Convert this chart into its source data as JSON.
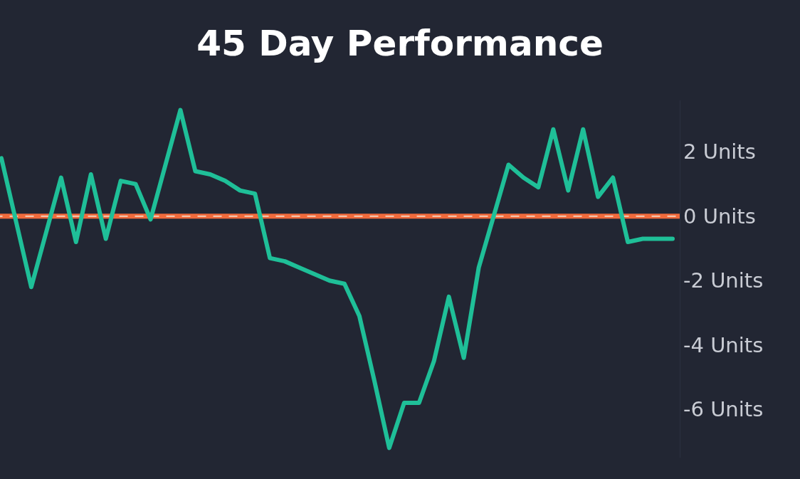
{
  "chart_data": {
    "type": "line",
    "title": "45 Day Performance",
    "categories": [
      null,
      null,
      null,
      null,
      null,
      null,
      null,
      null,
      null,
      null,
      null,
      null,
      null,
      null,
      null,
      null,
      null,
      null,
      null,
      null,
      null,
      null,
      null,
      null,
      null,
      null,
      null,
      null,
      null,
      null,
      null,
      null,
      null,
      null,
      null,
      null,
      null,
      null,
      null,
      null,
      null,
      null,
      null,
      null,
      null,
      null
    ],
    "series": [
      {
        "color": "#1fbf98",
        "values": [
          1.8,
          -0.2,
          -2.2,
          -0.5,
          1.2,
          -0.8,
          1.3,
          -0.7,
          1.1,
          1.0,
          -0.1,
          1.6,
          3.3,
          1.4,
          1.3,
          1.1,
          0.8,
          0.7,
          -1.3,
          -1.4,
          -1.6,
          -1.8,
          -2.0,
          -2.1,
          -3.1,
          -5.1,
          -7.2,
          -5.8,
          -5.8,
          -4.5,
          -2.5,
          -4.4,
          -1.6,
          0.0,
          1.6,
          1.2,
          0.9,
          2.7,
          0.8,
          2.7,
          0.6,
          1.2,
          -0.8,
          -0.7,
          -0.7,
          -0.7
        ]
      }
    ],
    "ylim": [
      -7.5,
      3.6
    ],
    "yticks": [
      {
        "value": 2,
        "label": "2 Units"
      },
      {
        "value": 0,
        "label": "0 Units"
      },
      {
        "value": -2,
        "label": "-2 Units"
      },
      {
        "value": -4,
        "label": "-4 Units"
      },
      {
        "value": -6,
        "label": "-6 Units"
      }
    ],
    "ref_lines": [
      {
        "axis": "y",
        "value": 0,
        "color": "#f06a3c",
        "line_style": "solid"
      },
      {
        "axis": "y",
        "value": 0,
        "color": "#f4e6d8",
        "line_style": "dashed"
      }
    ],
    "grid": false,
    "marker": "none",
    "line_style": "solid"
  }
}
